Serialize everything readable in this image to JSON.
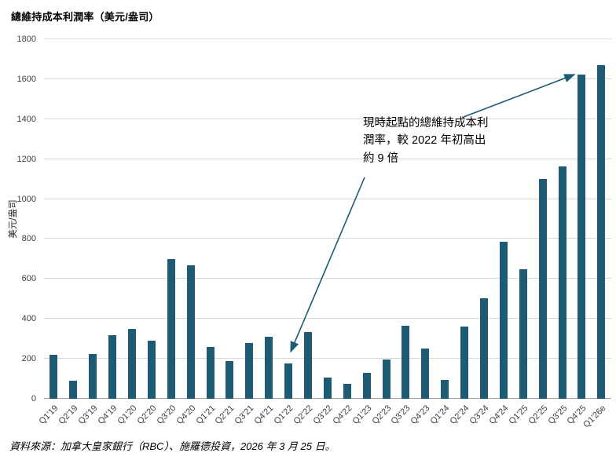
{
  "page": {
    "title": "總維持成本利潤率（美元/盎司）",
    "source": "資料來源：加拿大皇家銀行（RBC）、施羅德投資，2026 年 3 月 25 日。"
  },
  "annotation": {
    "full_text": "現時起點的總維持成本利潤率，較 2022 年初高出約 9 倍",
    "lines": [
      "現時起點的總維持成本利",
      "潤率，較 2022 年初高出",
      "約 9 倍"
    ]
  },
  "chart_data": {
    "type": "bar",
    "title": "總維持成本利潤率（美元/盎司）",
    "xlabel": "",
    "ylabel": "美元/盎司",
    "ylim": [
      0,
      1800
    ],
    "ytick_step": 200,
    "grid": true,
    "legend": false,
    "bar_color": "#1d5b75",
    "categories": [
      "Q1'19",
      "Q2'19",
      "Q3'19",
      "Q4'19",
      "Q1'20",
      "Q2'20",
      "Q3'20",
      "Q4'20",
      "Q1'21",
      "Q2'21",
      "Q3'21",
      "Q4'21",
      "Q1'22",
      "Q2'22",
      "Q3'22",
      "Q4'22",
      "Q1'23",
      "Q2'23",
      "Q3'23",
      "Q4'23",
      "Q1'24",
      "Q2'24",
      "Q3'24",
      "Q4'24",
      "Q1'25",
      "Q2'25",
      "Q3'25",
      "Q4'25",
      "Q1'26e"
    ],
    "values": [
      220,
      90,
      225,
      320,
      350,
      290,
      700,
      670,
      260,
      190,
      280,
      310,
      175,
      335,
      105,
      75,
      130,
      195,
      365,
      250,
      95,
      360,
      505,
      785,
      650,
      1100,
      1165,
      1625,
      1670
    ],
    "annotations": [
      {
        "text": "現時起點的總維持成本利潤率，較 2022 年初高出約 9 倍",
        "points_to": [
          "Q1'22",
          "Q4'25"
        ]
      }
    ]
  }
}
